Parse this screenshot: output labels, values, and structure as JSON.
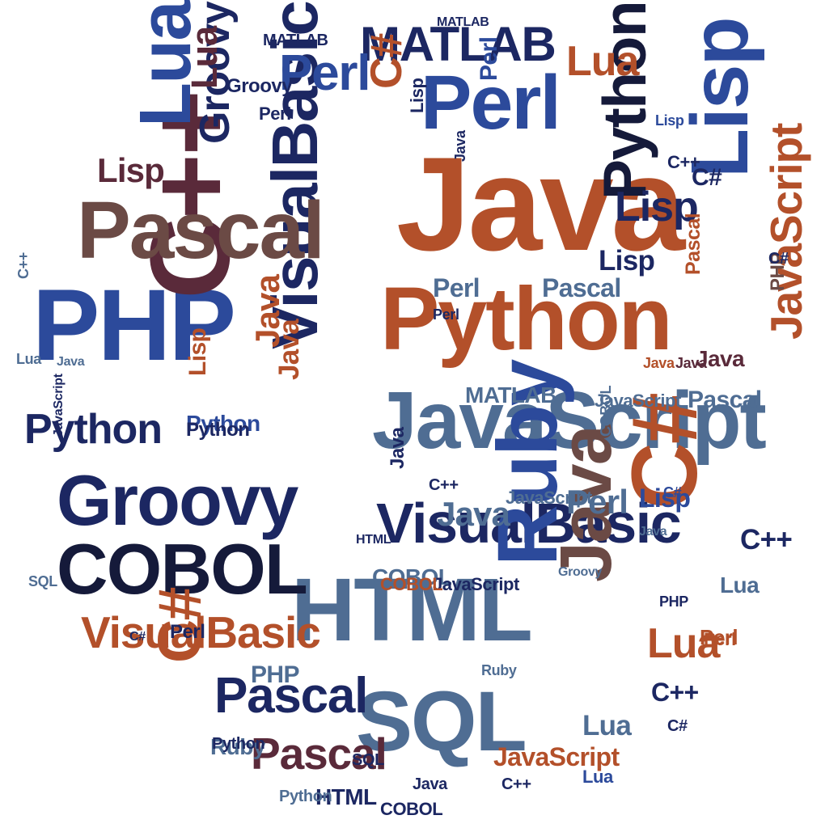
{
  "palette": {
    "navy": "#1c2762",
    "blue": "#2c4a9b",
    "steel": "#4f6d93",
    "rust": "#b3502a",
    "brown": "#6b4a45",
    "plum": "#5a2a3a",
    "dark": "#151a3a"
  },
  "cloud": {
    "words": [
      {
        "text": "Java",
        "color": "rust"
      },
      {
        "text": "Python",
        "color": "rust"
      },
      {
        "text": "VisualBasic",
        "color": "navy"
      },
      {
        "text": "JavaScript",
        "color": "steel"
      },
      {
        "text": "PHP",
        "color": "blue"
      },
      {
        "text": "HTML",
        "color": "steel"
      },
      {
        "text": "C++",
        "color": "plum"
      },
      {
        "text": "Pascal",
        "color": "brown"
      },
      {
        "text": "Groovy",
        "color": "navy"
      },
      {
        "text": "COBOL",
        "color": "dark"
      },
      {
        "text": "VisualBasic",
        "color": "navy"
      },
      {
        "text": "SQL",
        "color": "steel"
      },
      {
        "text": "Ruby",
        "color": "blue"
      },
      {
        "text": "Perl",
        "color": "blue"
      },
      {
        "text": "MATLAB",
        "color": "navy"
      },
      {
        "text": "Lisp",
        "color": "blue"
      },
      {
        "text": "C#",
        "color": "rust"
      },
      {
        "text": "Python",
        "color": "dark"
      },
      {
        "text": "Java",
        "color": "brown"
      },
      {
        "text": "VisualBasic",
        "color": "rust"
      },
      {
        "text": "Pascal",
        "color": "navy"
      },
      {
        "text": "Pascal",
        "color": "plum"
      },
      {
        "text": "Perl",
        "color": "blue"
      },
      {
        "text": "Lua",
        "color": "blue"
      },
      {
        "text": "Python",
        "color": "navy"
      },
      {
        "text": "Groovy",
        "color": "navy"
      },
      {
        "text": "Lisp",
        "color": "plum"
      },
      {
        "text": "Lua",
        "color": "rust"
      },
      {
        "text": "JavaScript",
        "color": "rust"
      },
      {
        "text": "Lisp",
        "color": "navy"
      },
      {
        "text": "Lua",
        "color": "rust"
      },
      {
        "text": "C#",
        "color": "rust"
      },
      {
        "text": "Java",
        "color": "steel"
      },
      {
        "text": "Perl",
        "color": "steel"
      },
      {
        "text": "C#",
        "color": "rust"
      },
      {
        "text": "Lisp",
        "color": "navy"
      },
      {
        "text": "Java",
        "color": "plum"
      },
      {
        "text": "Lua",
        "color": "plum"
      },
      {
        "text": "Java",
        "color": "rust"
      },
      {
        "text": "Lua",
        "color": "steel"
      },
      {
        "text": "COBOL",
        "color": "steel"
      },
      {
        "text": "JavaScript",
        "color": "rust"
      },
      {
        "text": "Pascal",
        "color": "steel"
      },
      {
        "text": "Perl",
        "color": "steel"
      },
      {
        "text": "Python",
        "color": "blue"
      },
      {
        "text": "MATLAB",
        "color": "steel"
      },
      {
        "text": "Perl",
        "color": "blue"
      },
      {
        "text": "Pascal",
        "color": "rust"
      },
      {
        "text": "Ruby",
        "color": "steel"
      },
      {
        "text": "Lua",
        "color": "steel"
      },
      {
        "text": "C++",
        "color": "navy"
      },
      {
        "text": "Perl",
        "color": "navy"
      },
      {
        "text": "Lisp",
        "color": "blue"
      },
      {
        "text": "C++",
        "color": "navy"
      },
      {
        "text": "Perl",
        "color": "rust"
      },
      {
        "text": "C#",
        "color": "navy"
      },
      {
        "text": "PHP",
        "color": "brown"
      },
      {
        "text": "PHP",
        "color": "steel"
      },
      {
        "text": "JavaScript",
        "color": "navy"
      },
      {
        "text": "COBOL",
        "color": "rust"
      },
      {
        "text": "Java",
        "color": "rust"
      },
      {
        "text": "MATLAB",
        "color": "navy"
      },
      {
        "text": "C++",
        "color": "navy"
      },
      {
        "text": "Lisp",
        "color": "rust"
      },
      {
        "text": "Python",
        "color": "navy"
      },
      {
        "text": "Ruby",
        "color": "steel"
      },
      {
        "text": "Java",
        "color": "navy"
      },
      {
        "text": "Perl",
        "color": "navy"
      },
      {
        "text": "Java",
        "color": "plum"
      },
      {
        "text": "C++",
        "color": "steel"
      },
      {
        "text": "Lisp",
        "color": "blue"
      },
      {
        "text": "PHP",
        "color": "navy"
      },
      {
        "text": "C#",
        "color": "navy"
      },
      {
        "text": "C#",
        "color": "navy"
      },
      {
        "text": "C#",
        "color": "blue"
      },
      {
        "text": "Groovy",
        "color": "steel"
      },
      {
        "text": "MATLAB",
        "color": "navy"
      },
      {
        "text": "Java",
        "color": "rust"
      },
      {
        "text": "COBOL",
        "color": "steel"
      },
      {
        "text": "Pascal",
        "color": "steel"
      },
      {
        "text": "JavaScript",
        "color": "steel"
      },
      {
        "text": "C++",
        "color": "navy"
      },
      {
        "text": "C#",
        "color": "navy"
      },
      {
        "text": "HTML",
        "color": "navy"
      },
      {
        "text": "SQL",
        "color": "navy"
      },
      {
        "text": "JavaScript",
        "color": "navy"
      },
      {
        "text": "Python",
        "color": "steel"
      },
      {
        "text": "Java",
        "color": "navy"
      },
      {
        "text": "Lua",
        "color": "steel"
      },
      {
        "text": "JavaScript",
        "color": "steel"
      },
      {
        "text": "SQL",
        "color": "steel"
      },
      {
        "text": "Groovy",
        "color": "navy"
      },
      {
        "text": "Java",
        "color": "navy"
      },
      {
        "text": "Perl",
        "color": "navy"
      },
      {
        "text": "Java",
        "color": "steel"
      },
      {
        "text": "HTML",
        "color": "navy"
      },
      {
        "text": "Java",
        "color": "steel"
      },
      {
        "text": "Lua",
        "color": "blue"
      },
      {
        "text": "Python",
        "color": "navy"
      },
      {
        "text": "Lisp",
        "color": "navy"
      },
      {
        "text": "COBOL",
        "color": "navy"
      },
      {
        "text": "C++",
        "color": "navy"
      },
      {
        "text": "Perl",
        "color": "rust"
      }
    ]
  }
}
